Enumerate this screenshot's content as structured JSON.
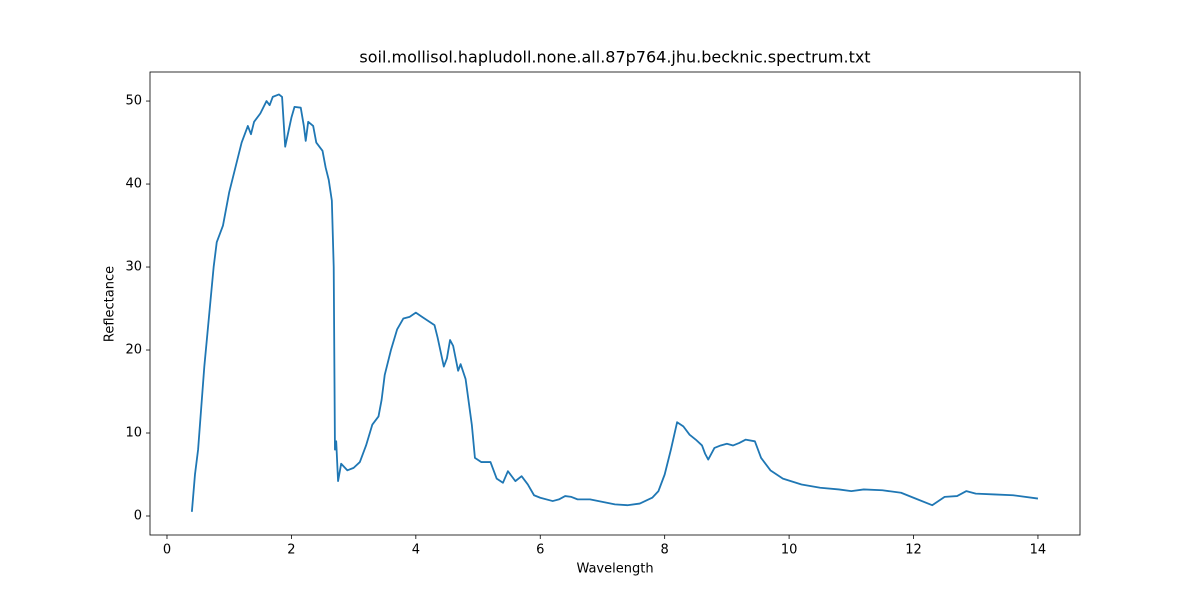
{
  "chart_data": {
    "type": "line",
    "title": "soil.mollisol.hapludoll.none.all.87p764.jhu.becknic.spectrum.txt",
    "x_label": "Wavelength",
    "y_label": "Reflectance",
    "xlim": [
      -0.273,
      14.676
    ],
    "ylim": [
      -2.29,
      53.5
    ],
    "xticks": [
      0,
      2,
      4,
      6,
      8,
      10,
      12,
      14
    ],
    "yticks": [
      0,
      10,
      20,
      30,
      40,
      50
    ],
    "grid": false,
    "x": [
      0.4,
      0.45,
      0.5,
      0.55,
      0.6,
      0.65,
      0.7,
      0.75,
      0.8,
      0.9,
      1.0,
      1.1,
      1.2,
      1.3,
      1.35,
      1.4,
      1.5,
      1.6,
      1.65,
      1.7,
      1.8,
      1.85,
      1.9,
      2.0,
      2.05,
      2.15,
      2.2,
      2.23,
      2.27,
      2.35,
      2.4,
      2.5,
      2.55,
      2.6,
      2.65,
      2.68,
      2.7,
      2.72,
      2.75,
      2.8,
      2.9,
      3.0,
      3.1,
      3.2,
      3.3,
      3.4,
      3.45,
      3.5,
      3.6,
      3.7,
      3.8,
      3.9,
      4.0,
      4.1,
      4.2,
      4.3,
      4.35,
      4.45,
      4.5,
      4.55,
      4.6,
      4.68,
      4.72,
      4.8,
      4.9,
      4.95,
      5.05,
      5.2,
      5.3,
      5.4,
      5.48,
      5.6,
      5.7,
      5.8,
      5.9,
      6.0,
      6.2,
      6.3,
      6.4,
      6.5,
      6.6,
      6.8,
      7.0,
      7.2,
      7.4,
      7.6,
      7.8,
      7.9,
      8.0,
      8.1,
      8.2,
      8.3,
      8.4,
      8.5,
      8.6,
      8.65,
      8.7,
      8.8,
      8.9,
      9.0,
      9.1,
      9.2,
      9.3,
      9.45,
      9.55,
      9.7,
      9.9,
      10.2,
      10.5,
      10.8,
      11.0,
      11.2,
      11.5,
      11.8,
      12.0,
      12.3,
      12.5,
      12.7,
      12.85,
      13.0,
      13.3,
      13.6,
      14.0
    ],
    "series": [
      {
        "color": "#1f77b4",
        "values": [
          0.5,
          5,
          8,
          13,
          18,
          22,
          26,
          30,
          33,
          35,
          39,
          42,
          45,
          47,
          46,
          47.5,
          48.5,
          50,
          49.5,
          50.5,
          50.8,
          50.5,
          44.5,
          48,
          49.3,
          49.2,
          47,
          45.2,
          47.5,
          47,
          45,
          44,
          42,
          40.5,
          38,
          30,
          8,
          9,
          4.2,
          6.3,
          5.5,
          5.8,
          6.5,
          8.5,
          11,
          12,
          14,
          17,
          20,
          22.5,
          23.8,
          24,
          24.5,
          24,
          23.5,
          23,
          21.5,
          18,
          19,
          21.2,
          20.5,
          17.5,
          18.3,
          16.5,
          11,
          7,
          6.5,
          6.5,
          4.5,
          4,
          5.4,
          4.2,
          4.8,
          3.8,
          2.5,
          2.2,
          1.8,
          2,
          2.4,
          2.3,
          2.0,
          2,
          1.7,
          1.4,
          1.3,
          1.5,
          2.2,
          3,
          5,
          8,
          11.3,
          10.8,
          9.8,
          9.2,
          8.5,
          7.5,
          6.8,
          8.2,
          8.5,
          8.7,
          8.5,
          8.8,
          9.2,
          9,
          7,
          5.5,
          4.5,
          3.8,
          3.4,
          3.2,
          3.0,
          3.2,
          3.1,
          2.8,
          2.2,
          1.3,
          2.3,
          2.4,
          3,
          2.7,
          2.6,
          2.5,
          2.1
        ]
      }
    ]
  }
}
